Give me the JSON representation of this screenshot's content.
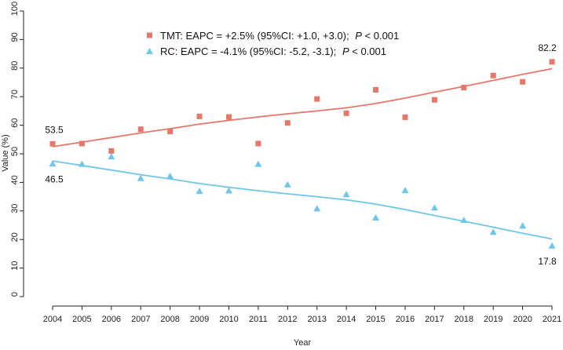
{
  "chart_data": {
    "type": "scatter",
    "title": "",
    "xlabel": "Year",
    "ylabel": "Value (%)",
    "ylim": [
      0,
      100
    ],
    "yticks": [
      0,
      10,
      20,
      30,
      40,
      50,
      60,
      70,
      80,
      90,
      100
    ],
    "x": [
      2004,
      2005,
      2006,
      2007,
      2008,
      2009,
      2010,
      2011,
      2012,
      2013,
      2014,
      2015,
      2016,
      2017,
      2018,
      2019,
      2020,
      2021
    ],
    "grid": false,
    "legend_position": "top-center",
    "series": [
      {
        "name": "TMT",
        "marker": "square",
        "color": "#e8776b",
        "legend_text": "TMT:   EAPC = +2.5% (95%CI: +1.0, +3.0);",
        "p_label": "P",
        "p_value": " < 0.001",
        "values": [
          53.5,
          53.6,
          51.0,
          58.6,
          57.8,
          63.1,
          62.9,
          53.6,
          60.8,
          69.2,
          64.2,
          72.4,
          62.8,
          68.9,
          73.2,
          77.4,
          75.2,
          82.2
        ],
        "trend": [
          52.5,
          54.1,
          55.7,
          57.3,
          58.8,
          60.4,
          61.7,
          62.9,
          64.0,
          65.0,
          66.1,
          67.6,
          69.5,
          71.6,
          73.6,
          75.7,
          77.8,
          79.8
        ]
      },
      {
        "name": "RC",
        "marker": "triangle",
        "color": "#6ec6ea",
        "legend_text": "RC:     EAPC = -4.1% (95%CI: -5.2, -3.1);",
        "p_label": "P",
        "p_value": " < 0.001",
        "values": [
          46.5,
          46.4,
          49.0,
          41.4,
          42.2,
          36.9,
          37.1,
          46.4,
          39.2,
          30.8,
          35.8,
          27.6,
          37.2,
          31.1,
          26.8,
          22.6,
          24.8,
          17.8
        ],
        "trend": [
          47.5,
          45.9,
          44.3,
          42.7,
          41.2,
          39.6,
          38.3,
          37.1,
          36.0,
          35.0,
          33.9,
          32.4,
          30.5,
          28.4,
          26.4,
          24.3,
          22.2,
          20.2
        ]
      }
    ],
    "annotations": [
      {
        "series": 0,
        "index": 0,
        "text": "53.5"
      },
      {
        "series": 1,
        "index": 0,
        "text": "46.5"
      },
      {
        "series": 0,
        "index": 17,
        "text": "82.2"
      },
      {
        "series": 1,
        "index": 17,
        "text": "17.8"
      }
    ]
  }
}
